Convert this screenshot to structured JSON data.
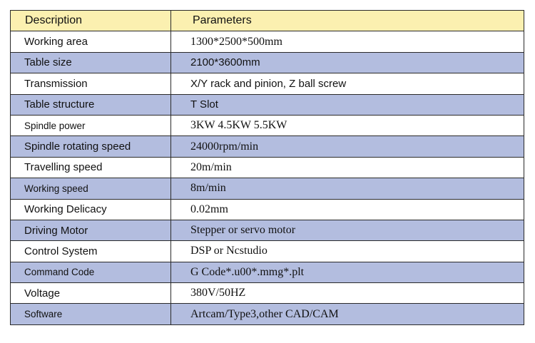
{
  "header": {
    "description": "Description",
    "parameters": "Parameters"
  },
  "rows": [
    {
      "description": "Working area",
      "parameter": "1300*2500*500mm"
    },
    {
      "description": "Table size",
      "parameter": "2100*3600mm"
    },
    {
      "description": "Transmission",
      "parameter": "X/Y rack and pinion, Z ball screw"
    },
    {
      "description": "Table structure",
      "parameter": "T Slot"
    },
    {
      "description": "Spindle power",
      "parameter": "3KW 4.5KW 5.5KW"
    },
    {
      "description": "Spindle rotating speed",
      "parameter": "24000rpm/min"
    },
    {
      "description": "Travelling speed",
      "parameter": "20m/min"
    },
    {
      "description": "Working speed",
      "parameter": "8m/min"
    },
    {
      "description": "Working Delicacy",
      "parameter": "0.02mm"
    },
    {
      "description": "Driving Motor",
      "parameter": "Stepper or servo motor"
    },
    {
      "description": "Control System",
      "parameter": "DSP or Ncstudio"
    },
    {
      "description": "Command Code",
      "parameter": "G Code*.u00*.mmg*.plt"
    },
    {
      "description": "Voltage",
      "parameter": "380V/50HZ"
    },
    {
      "description": "Software",
      "parameter": "Artcam/Type3,other CAD/CAM"
    }
  ],
  "colors": {
    "header_background": "#fbf0b0",
    "shaded_row_background": "#b3bddf",
    "plain_row_background": "#ffffff",
    "border": "#2a2a2a"
  }
}
